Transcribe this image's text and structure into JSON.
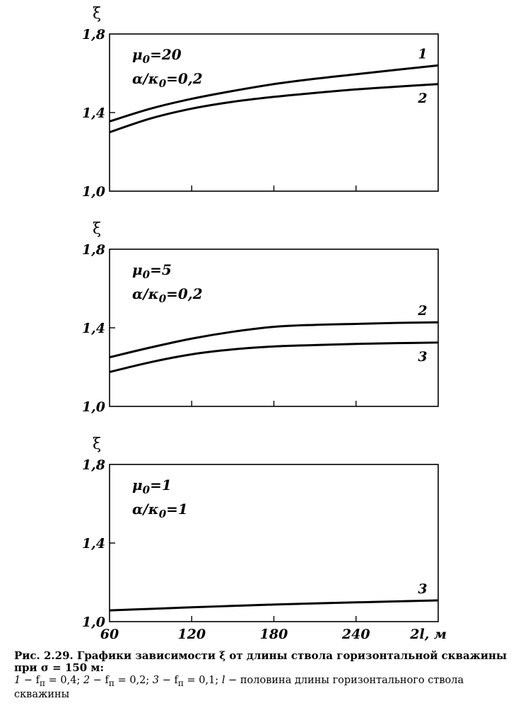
{
  "caption": {
    "line1": "Рис. 2.29. Графики зависимости ξ от длины ствола горизонтальной скважины",
    "line2": "при σ = 150 м:",
    "legend": [
      {
        "num": "1",
        "text": " − f",
        "sub": "п",
        "value": " = 0,4; "
      },
      {
        "num": "2",
        "text": " − f",
        "sub": "п",
        "value": " = 0,2; "
      },
      {
        "num": "3",
        "text": " − f",
        "sub": "п",
        "value": " = 0,1; "
      },
      {
        "num": "l",
        "text": " − половина длины горизонтального ствола скважины",
        "sub": "",
        "value": ""
      }
    ]
  },
  "chart_data": [
    {
      "type": "line",
      "ylabel": "ξ",
      "xlabel": "",
      "xlim": [
        60,
        300
      ],
      "ylim": [
        1.0,
        1.8
      ],
      "yticks": [
        "1,8",
        "1,4",
        "1,0"
      ],
      "xticks": [],
      "params": {
        "mu_label": "μ",
        "mu_sub": "0",
        "mu_value": "=20",
        "alpha_label": "α/κ",
        "alpha_sub": "0",
        "alpha_value": "=0,2"
      },
      "series": [
        {
          "name": "1",
          "x": [
            60,
            90,
            120,
            150,
            180,
            210,
            240,
            270,
            300
          ],
          "y": [
            1.355,
            1.42,
            1.47,
            1.51,
            1.545,
            1.572,
            1.595,
            1.618,
            1.64
          ]
        },
        {
          "name": "2",
          "x": [
            60,
            90,
            120,
            150,
            180,
            210,
            240,
            270,
            300
          ],
          "y": [
            1.3,
            1.37,
            1.42,
            1.455,
            1.48,
            1.5,
            1.518,
            1.532,
            1.545
          ]
        }
      ]
    },
    {
      "type": "line",
      "ylabel": "ξ",
      "xlabel": "",
      "xlim": [
        60,
        300
      ],
      "ylim": [
        1.0,
        1.8
      ],
      "yticks": [
        "1,8",
        "1,4",
        "1,0"
      ],
      "xticks": [],
      "params": {
        "mu_label": "μ",
        "mu_sub": "0",
        "mu_value": "=5",
        "alpha_label": "α/κ",
        "alpha_sub": "0",
        "alpha_value": "=0,2"
      },
      "series": [
        {
          "name": "2",
          "x": [
            60,
            90,
            120,
            150,
            180,
            210,
            240,
            270,
            300
          ],
          "y": [
            1.25,
            1.3,
            1.345,
            1.38,
            1.405,
            1.415,
            1.42,
            1.425,
            1.428
          ]
        },
        {
          "name": "3",
          "x": [
            60,
            90,
            120,
            150,
            180,
            210,
            240,
            270,
            300
          ],
          "y": [
            1.175,
            1.225,
            1.265,
            1.29,
            1.305,
            1.312,
            1.318,
            1.322,
            1.325
          ]
        }
      ]
    },
    {
      "type": "line",
      "ylabel": "ξ",
      "xlabel": "2l, м",
      "xlim": [
        60,
        300
      ],
      "ylim": [
        1.0,
        1.8
      ],
      "yticks": [
        "1,8",
        "1,4",
        "1,0"
      ],
      "xticks": [
        "60",
        "120",
        "180",
        "240"
      ],
      "params": {
        "mu_label": "μ",
        "mu_sub": "0",
        "mu_value": "=1",
        "alpha_label": "α/κ",
        "alpha_sub": "0",
        "alpha_value": "=1"
      },
      "series": [
        {
          "name": "3",
          "x": [
            60,
            90,
            120,
            150,
            180,
            210,
            240,
            270,
            300
          ],
          "y": [
            1.057,
            1.065,
            1.073,
            1.08,
            1.087,
            1.093,
            1.098,
            1.103,
            1.108
          ]
        }
      ]
    }
  ]
}
